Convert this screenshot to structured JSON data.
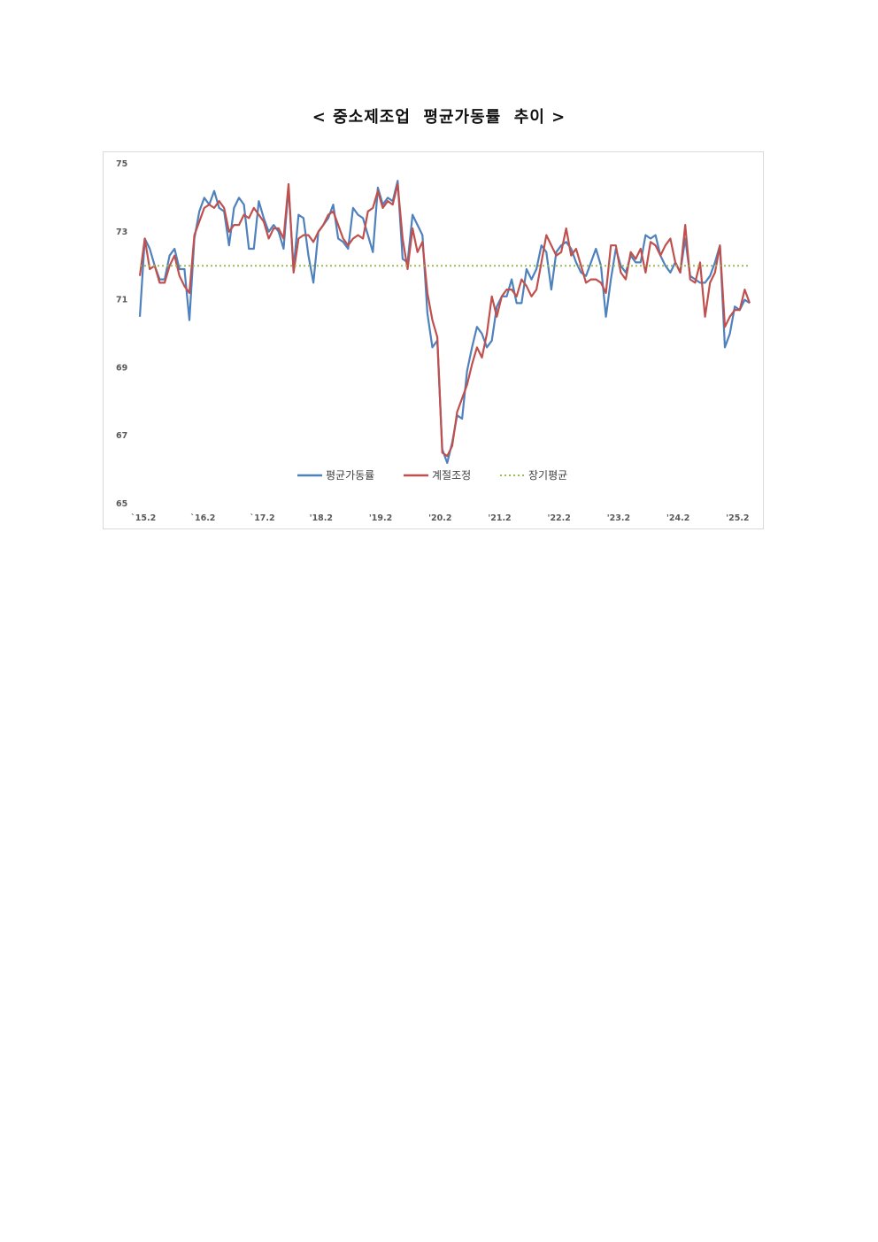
{
  "heading": "< 중소제조업  평균가동률  추이 >",
  "chart_data": {
    "type": "line",
    "title": "< 중소제조업  평균가동률  추이 >",
    "xlabel": "",
    "ylabel": "",
    "ylim": [
      65,
      75
    ],
    "y_ticks": [
      "75",
      "73",
      "71",
      "69",
      "67",
      "65"
    ],
    "x_tick_labels": [
      "`15.2",
      "`16.2",
      "`17.2",
      "'18.2",
      "'19.2",
      "'20.2",
      "'21.2",
      "'22.2",
      "'23.2",
      "'24.2",
      "'25.2"
    ],
    "grid": false,
    "legend_position": "bottom",
    "series": [
      {
        "name": "평균가동률",
        "color": "#4f81bd",
        "style": "solid",
        "values": [
          70.5,
          72.8,
          72.5,
          72.0,
          71.6,
          71.6,
          72.3,
          72.5,
          71.9,
          71.9,
          70.4,
          72.8,
          73.6,
          74.0,
          73.8,
          74.2,
          73.7,
          73.6,
          72.6,
          73.7,
          74.0,
          73.8,
          72.5,
          72.5,
          73.9,
          73.4,
          73.0,
          73.2,
          73.0,
          72.5,
          74.3,
          71.9,
          73.5,
          73.4,
          72.3,
          71.5,
          73.0,
          73.2,
          73.4,
          73.8,
          72.8,
          72.7,
          72.5,
          73.7,
          73.5,
          73.4,
          72.9,
          72.4,
          74.3,
          73.8,
          74.0,
          73.9,
          74.5,
          72.2,
          72.1,
          73.5,
          73.2,
          72.9,
          70.6,
          69.6,
          69.8,
          66.6,
          66.2,
          66.8,
          67.6,
          67.5,
          68.9,
          69.6,
          70.2,
          70.0,
          69.6,
          69.8,
          70.8,
          71.1,
          71.1,
          71.6,
          70.9,
          70.9,
          71.9,
          71.6,
          71.9,
          72.6,
          72.4,
          71.3,
          72.4,
          72.6,
          72.7,
          72.5,
          72.1,
          71.8,
          71.7,
          72.1,
          72.5,
          72.0,
          70.5,
          71.6,
          72.5,
          72.0,
          71.8,
          72.3,
          72.1,
          72.1,
          72.9,
          72.8,
          72.9,
          72.3,
          72.0,
          71.8,
          72.1,
          71.8,
          72.8,
          71.7,
          71.6,
          71.5,
          71.5,
          71.7,
          72.1,
          72.6,
          69.6,
          70.0,
          70.8,
          70.7,
          71.0,
          70.9
        ]
      },
      {
        "name": "계절조정",
        "color": "#c0504d",
        "style": "solid",
        "values": [
          71.7,
          72.8,
          71.9,
          72.0,
          71.5,
          71.5,
          72.0,
          72.3,
          71.7,
          71.4,
          71.2,
          72.9,
          73.3,
          73.7,
          73.8,
          73.7,
          73.9,
          73.7,
          73.0,
          73.2,
          73.2,
          73.5,
          73.4,
          73.7,
          73.5,
          73.3,
          72.8,
          73.1,
          73.1,
          72.8,
          74.4,
          71.8,
          72.8,
          72.9,
          72.9,
          72.7,
          73.0,
          73.2,
          73.5,
          73.6,
          73.2,
          72.8,
          72.6,
          72.8,
          72.9,
          72.8,
          73.6,
          73.7,
          74.2,
          73.7,
          73.9,
          73.8,
          74.4,
          72.8,
          71.9,
          73.1,
          72.4,
          72.7,
          71.2,
          70.4,
          69.9,
          66.5,
          66.4,
          66.7,
          67.7,
          68.1,
          68.5,
          69.1,
          69.6,
          69.3,
          70.0,
          71.1,
          70.5,
          71.1,
          71.3,
          71.3,
          71.1,
          71.6,
          71.4,
          71.1,
          71.3,
          72.1,
          72.9,
          72.6,
          72.3,
          72.4,
          73.1,
          72.3,
          72.5,
          72.0,
          71.5,
          71.6,
          71.6,
          71.5,
          71.2,
          72.6,
          72.6,
          71.8,
          71.6,
          72.4,
          72.2,
          72.5,
          71.8,
          72.7,
          72.6,
          72.3,
          72.6,
          72.8,
          72.1,
          71.8,
          73.2,
          71.6,
          71.5,
          72.1,
          70.5,
          71.5,
          71.8,
          72.6,
          70.2,
          70.5,
          70.7,
          70.7,
          71.3,
          70.9
        ]
      },
      {
        "name": "장기평균",
        "color": "#9bbb59",
        "style": "dotted",
        "values": [
          72.0,
          72.0
        ]
      }
    ]
  }
}
